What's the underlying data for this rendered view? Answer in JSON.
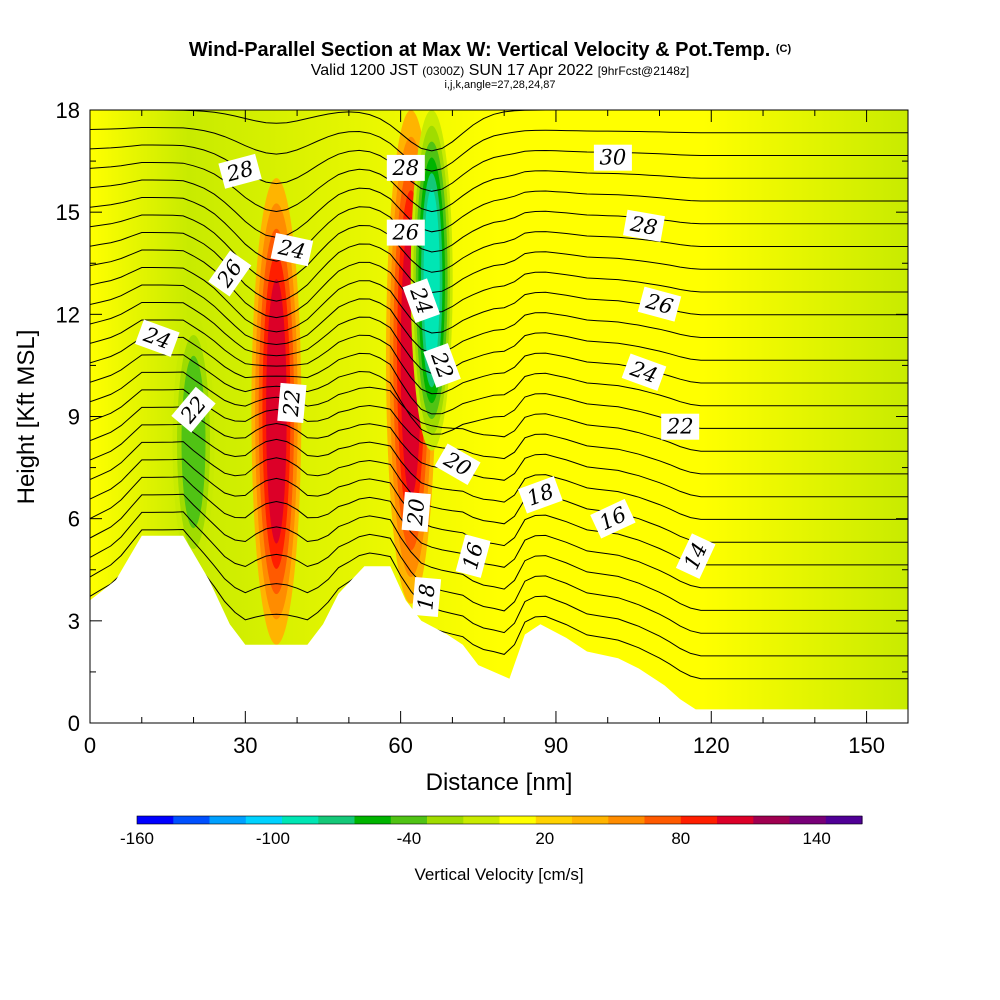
{
  "chart_data": {
    "type": "heatmap",
    "title": "Wind-Parallel Section at Max W: Vertical Velocity & Pot.Temp.",
    "title_mark": "(C)",
    "subtitle_parts": [
      "Valid 1200 JST",
      "(0300Z)",
      "SUN 17 Apr 2022",
      "[9hrFcst@2148z]"
    ],
    "subtitle2": "i,j,k,angle=27,28,24,87",
    "xlabel": "Distance [nm]",
    "ylabel": "Height [Kft MSL]",
    "xlim": [
      0,
      158
    ],
    "ylim": [
      0,
      18
    ],
    "xticks": [
      0,
      30,
      60,
      90,
      120,
      150
    ],
    "yticks": [
      0,
      3,
      6,
      9,
      12,
      15,
      18
    ],
    "colorbar": {
      "label": "Vertical Velocity [cm/s]",
      "range": [
        -160,
        160
      ],
      "tick_values": [
        -160,
        -100,
        -40,
        20,
        80,
        140
      ],
      "colors": [
        "#0000ff",
        "#0050ff",
        "#00a0ff",
        "#00d2ff",
        "#00e6b4",
        "#14c878",
        "#00b400",
        "#50c314",
        "#a0dc00",
        "#c8eb00",
        "#ffff00",
        "#ffd200",
        "#ffb400",
        "#ff8c00",
        "#ff5a00",
        "#ff1e00",
        "#dc0028",
        "#a00050",
        "#780078",
        "#500096"
      ]
    },
    "terrain": [
      [
        0,
        3.6
      ],
      [
        5,
        4.2
      ],
      [
        10,
        5.5
      ],
      [
        18,
        5.5
      ],
      [
        23,
        4.2
      ],
      [
        27,
        2.9
      ],
      [
        30,
        2.3
      ],
      [
        42,
        2.3
      ],
      [
        45,
        2.9
      ],
      [
        48,
        3.8
      ],
      [
        53,
        4.6
      ],
      [
        58,
        4.6
      ],
      [
        61,
        3.6
      ],
      [
        64,
        3.0
      ],
      [
        69,
        2.6
      ],
      [
        72,
        2.3
      ],
      [
        75,
        1.7
      ],
      [
        78,
        1.5
      ],
      [
        81,
        1.3
      ],
      [
        84,
        2.6
      ],
      [
        87,
        2.9
      ],
      [
        92,
        2.5
      ],
      [
        96,
        2.1
      ],
      [
        102,
        1.9
      ],
      [
        106,
        1.6
      ],
      [
        111,
        1.1
      ],
      [
        114,
        0.7
      ],
      [
        117,
        0.4
      ],
      [
        158,
        0.4
      ]
    ],
    "contour_labels": [
      {
        "text": "28",
        "x": 29,
        "y": 16.2,
        "angle": -15
      },
      {
        "text": "30",
        "x": 101,
        "y": 16.6,
        "angle": 0
      },
      {
        "text": "28",
        "x": 61,
        "y": 16.3,
        "angle": 0
      },
      {
        "text": "28",
        "x": 107,
        "y": 14.6,
        "angle": 10
      },
      {
        "text": "26",
        "x": 27,
        "y": 13.2,
        "angle": -55
      },
      {
        "text": "24",
        "x": 39,
        "y": 13.9,
        "angle": 12
      },
      {
        "text": "26",
        "x": 61,
        "y": 14.4,
        "angle": 0
      },
      {
        "text": "24",
        "x": 64,
        "y": 12.4,
        "angle": 70
      },
      {
        "text": "26",
        "x": 110,
        "y": 12.3,
        "angle": 15
      },
      {
        "text": "24",
        "x": 13,
        "y": 11.3,
        "angle": 20
      },
      {
        "text": "22",
        "x": 68,
        "y": 10.5,
        "angle": 70
      },
      {
        "text": "24",
        "x": 107,
        "y": 10.3,
        "angle": 20
      },
      {
        "text": "22",
        "x": 20,
        "y": 9.2,
        "angle": -50
      },
      {
        "text": "22",
        "x": 39,
        "y": 9.4,
        "angle": -85
      },
      {
        "text": "22",
        "x": 114,
        "y": 8.7,
        "angle": 0
      },
      {
        "text": "20",
        "x": 71,
        "y": 7.6,
        "angle": 30
      },
      {
        "text": "18",
        "x": 87,
        "y": 6.7,
        "angle": -20
      },
      {
        "text": "20",
        "x": 63,
        "y": 6.2,
        "angle": -85
      },
      {
        "text": "16",
        "x": 101,
        "y": 6.0,
        "angle": -25
      },
      {
        "text": "16",
        "x": 74,
        "y": 4.9,
        "angle": -75
      },
      {
        "text": "14",
        "x": 117,
        "y": 4.9,
        "angle": -65
      },
      {
        "text": "18",
        "x": 65,
        "y": 3.7,
        "angle": -85
      }
    ],
    "shaded_features": [
      {
        "kind": "updraft",
        "x_center": 36,
        "y_range": [
          2.3,
          16.0
        ],
        "peak": 110
      },
      {
        "kind": "updraft",
        "x_center": 62,
        "y_range": [
          3.5,
          18.0
        ],
        "peak": 110
      },
      {
        "kind": "downdraft",
        "x_center": 66,
        "y_range": [
          8.0,
          18.0
        ],
        "peak": -100
      },
      {
        "kind": "downdraft",
        "x_center": 20,
        "y_range": [
          4.5,
          12.0
        ],
        "peak": -40
      }
    ]
  }
}
